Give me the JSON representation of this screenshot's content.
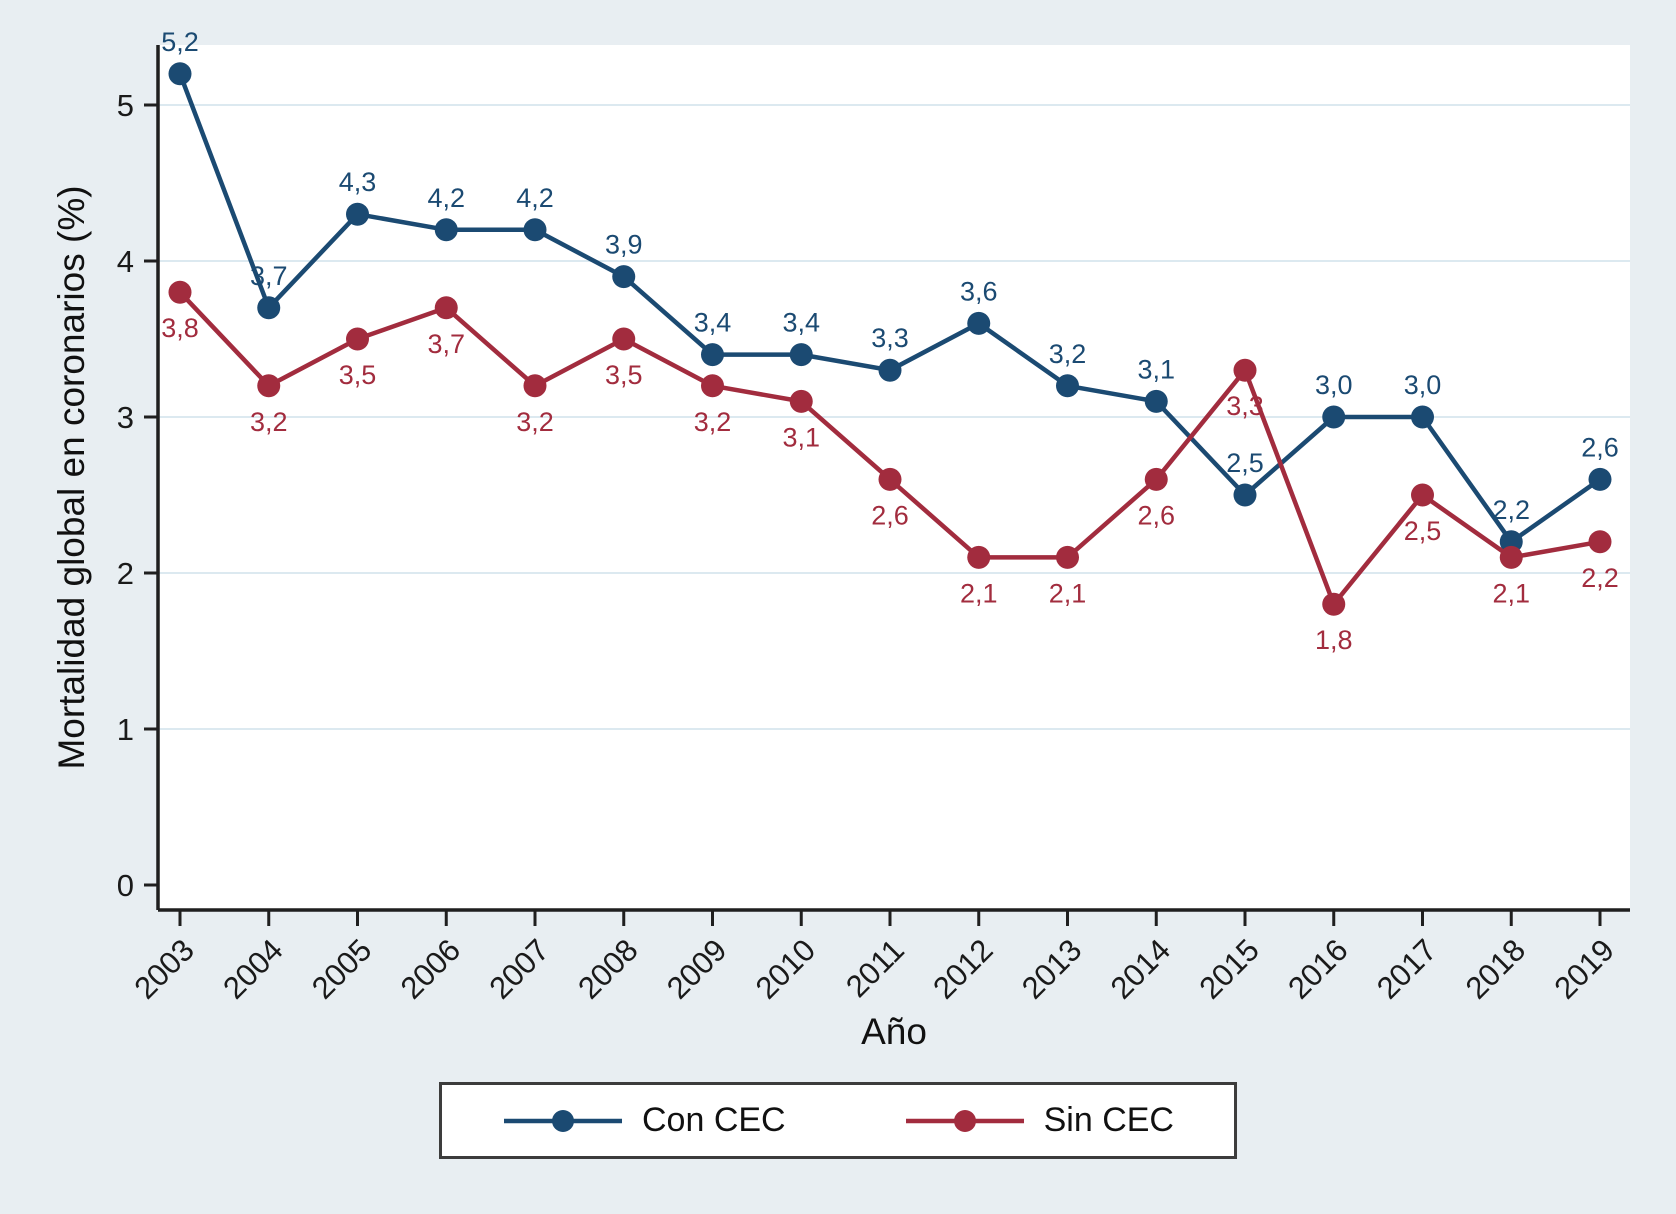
{
  "figure": {
    "background_color": "#e8eef2",
    "plot_background": "#ffffff",
    "axis_color": "#1f1f1f",
    "grid_color": "#dce9f0"
  },
  "chart_data": {
    "type": "line",
    "title": "",
    "xlabel": "Año",
    "ylabel": "Mortalidad global en coronarios (%)",
    "categories": [
      "2003",
      "2004",
      "2005",
      "2006",
      "2007",
      "2008",
      "2009",
      "2010",
      "2011",
      "2012",
      "2013",
      "2014",
      "2015",
      "2016",
      "2017",
      "2018",
      "2019"
    ],
    "ylim": [
      0,
      5.4
    ],
    "yticks": [
      0,
      1,
      2,
      3,
      4,
      5
    ],
    "grid": "horizontal",
    "legend_position": "bottom",
    "series": [
      {
        "name": "Con CEC",
        "color": "#1b4a72",
        "marker": "circle",
        "label_position": "above",
        "values": [
          5.2,
          3.7,
          4.3,
          4.2,
          4.2,
          3.9,
          3.4,
          3.4,
          3.3,
          3.6,
          3.2,
          3.1,
          2.5,
          3.0,
          3.0,
          2.2,
          2.6
        ],
        "labels": [
          "5,2",
          "3,7",
          "4,3",
          "4,2",
          "4,2",
          "3,9",
          "3,4",
          "3,4",
          "3,3",
          "3,6",
          "3,2",
          "3,1",
          "2,5",
          "3,0",
          "3,0",
          "2,2",
          "2,6"
        ]
      },
      {
        "name": "Sin CEC",
        "color": "#a22c3e",
        "marker": "circle",
        "label_position": "below",
        "values": [
          3.8,
          3.2,
          3.5,
          3.7,
          3.2,
          3.5,
          3.2,
          3.1,
          2.6,
          2.1,
          2.1,
          2.6,
          3.3,
          1.8,
          2.5,
          2.1,
          2.2
        ],
        "labels": [
          "3,8",
          "3,2",
          "3,5",
          "3,7",
          "3,2",
          "3,5",
          "3,2",
          "3,1",
          "2,6",
          "2,1",
          "2,1",
          "2,6",
          "3,3",
          "1,8",
          "2,5",
          "2,1",
          "2,2"
        ]
      }
    ]
  }
}
